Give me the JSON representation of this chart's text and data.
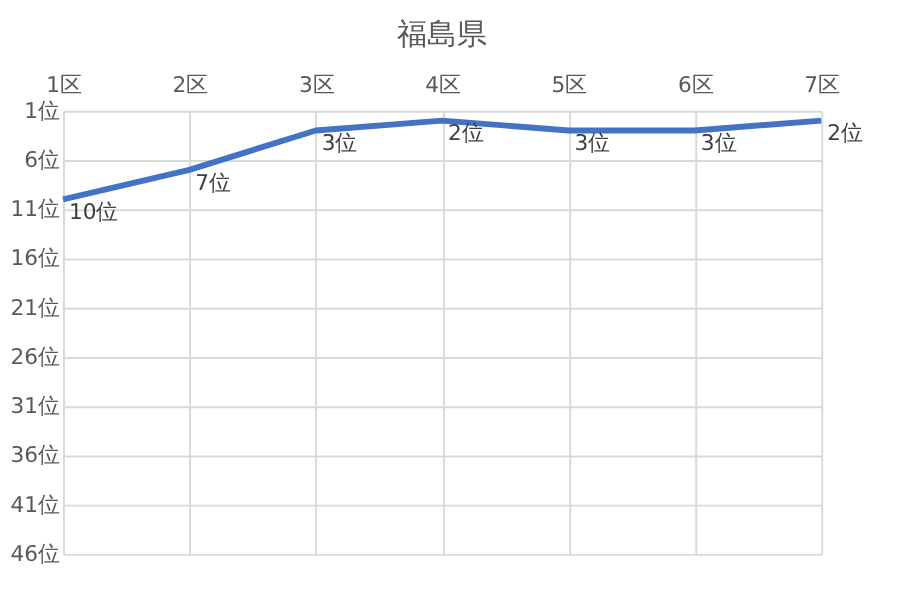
{
  "chart_data": {
    "type": "line",
    "title": "福島県",
    "categories": [
      "1区",
      "2区",
      "3区",
      "4区",
      "5区",
      "6区",
      "7区"
    ],
    "series": [
      {
        "color": "#4472c4",
        "values": [
          10,
          7,
          3,
          2,
          3,
          3,
          2
        ],
        "value_labels": [
          "10位",
          "7位",
          "3位",
          "2位",
          "3位",
          "3位",
          "2位"
        ]
      }
    ],
    "ylim": [
      46,
      1
    ],
    "yticks": [
      {
        "value": 1,
        "label": "1位"
      },
      {
        "value": 6,
        "label": "6位"
      },
      {
        "value": 11,
        "label": "11位"
      },
      {
        "value": 16,
        "label": "16位"
      },
      {
        "value": 21,
        "label": "21位"
      },
      {
        "value": 26,
        "label": "26位"
      },
      {
        "value": 31,
        "label": "31位"
      },
      {
        "value": 36,
        "label": "36位"
      },
      {
        "value": 41,
        "label": "41位"
      },
      {
        "value": 46,
        "label": "46位"
      }
    ],
    "grid": true,
    "marker": "none",
    "line_style": "solid"
  }
}
